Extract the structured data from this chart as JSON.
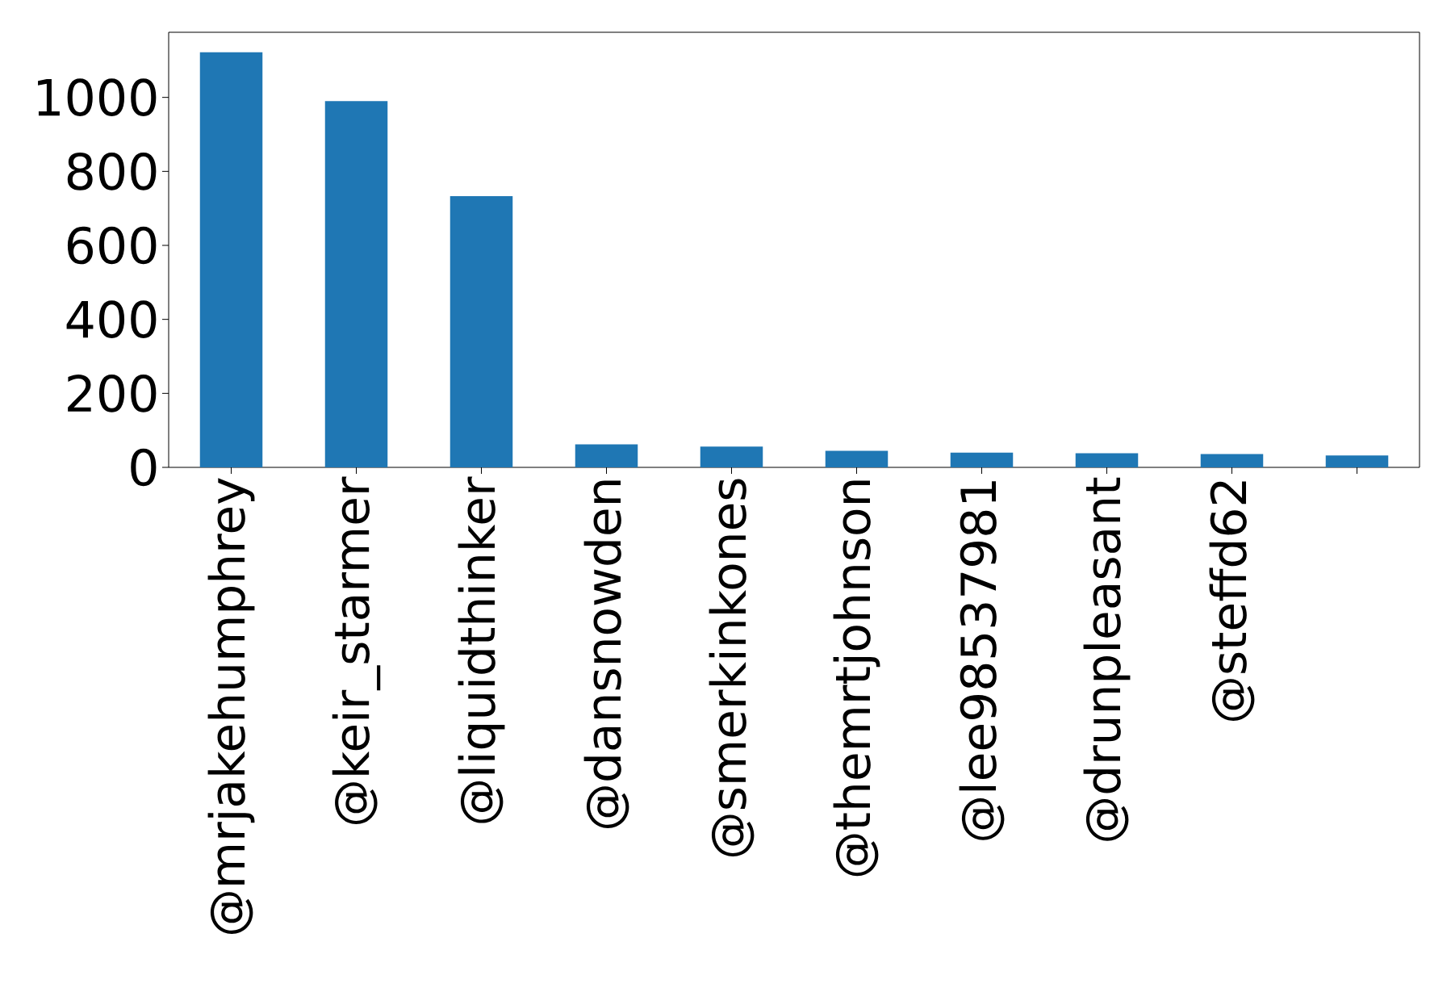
{
  "chart_data": {
    "type": "bar",
    "categories": [
      "@mrjakehumphrey",
      "@keir_starmer",
      "@liquidthinker",
      "@dansnowden",
      "@smerkinkones",
      "@themrtjohnson",
      "@lee98537981",
      "@drunpleasant",
      "@steffd62",
      null
    ],
    "values": [
      1122,
      990,
      733,
      62,
      56,
      45,
      40,
      38,
      36,
      32
    ],
    "color": "#1f77b4",
    "ylim": [
      0,
      1176
    ],
    "yticks": [
      0,
      200,
      400,
      600,
      800,
      1000
    ],
    "grid": false
  }
}
